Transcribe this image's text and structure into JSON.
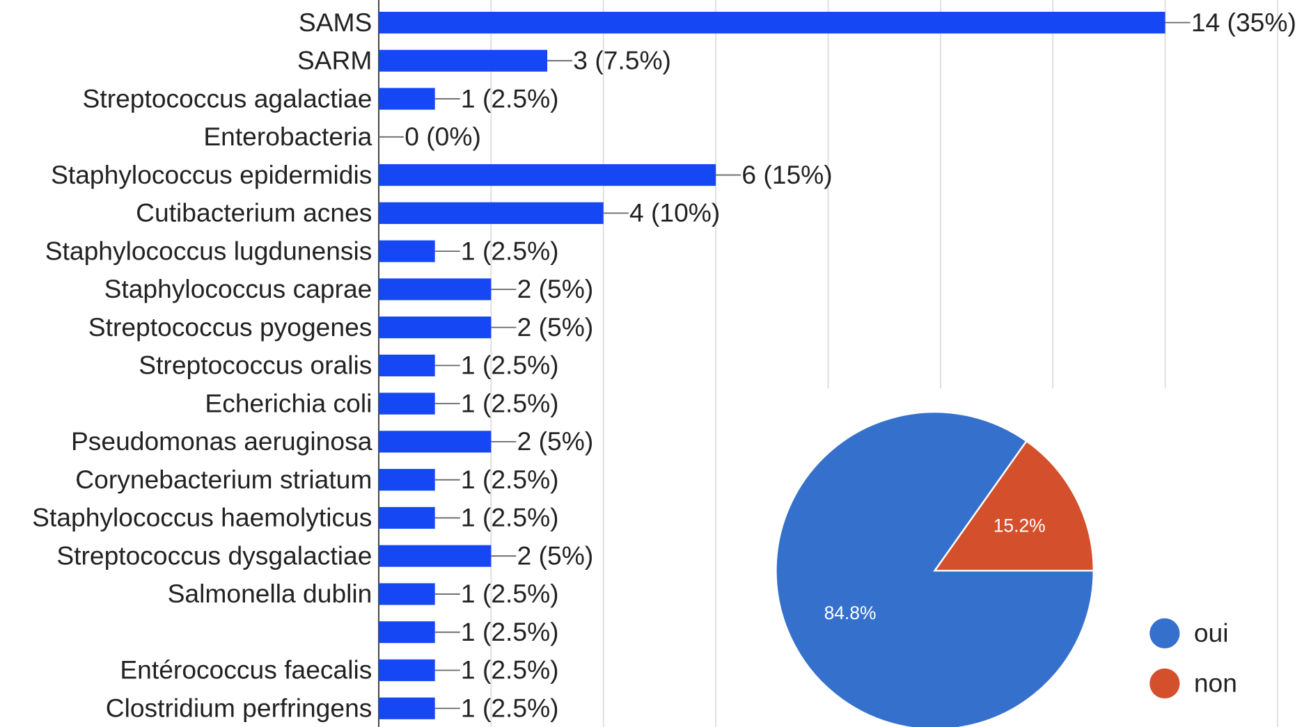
{
  "chart_data": [
    {
      "type": "bar",
      "orientation": "horizontal",
      "categories": [
        "SAMS",
        "SARM",
        "Streptococcus agalactiae",
        "Enterobacteria",
        "Staphylococcus epidermidis",
        "Cutibacterium acnes",
        "Staphylococcus lugdunensis",
        "Staphylococcus caprae",
        "Streptococcus pyogenes",
        "Streptococcus oralis",
        "Echerichia coli",
        "Pseudomonas aeruginosa",
        "Corynebacterium striatum",
        "Staphylococcus haemolyticus",
        "Streptococcus dysgalactiae",
        "Salmonella dublin",
        null,
        "Entérococcus faecalis",
        "Clostridium perfringens"
      ],
      "values": [
        14,
        3,
        1,
        0,
        6,
        4,
        1,
        2,
        2,
        1,
        1,
        2,
        1,
        1,
        2,
        1,
        1,
        1,
        1
      ],
      "value_labels": [
        "14 (35%)",
        "3 (7.5%)",
        "1 (2.5%)",
        "0 (0%)",
        "6 (15%)",
        "4 (10%)",
        "1 (2.5%)",
        "2 (5%)",
        "2 (5%)",
        "1 (2.5%)",
        "1 (2.5%)",
        "2 (5%)",
        "1 (2.5%)",
        "1 (2.5%)",
        "2 (5%)",
        "1 (2.5%)",
        "1 (2.5%)",
        "1 (2.5%)",
        "1 (2.5%)"
      ],
      "color": "#1547f5",
      "xlim": [
        0,
        16
      ],
      "xticks": [
        0,
        2,
        4,
        6,
        8,
        10,
        12,
        14,
        16
      ],
      "grid": true
    },
    {
      "type": "pie",
      "categories": [
        "oui",
        "non"
      ],
      "values": [
        84.8,
        15.2
      ],
      "value_labels": [
        "84.8%",
        "15.2%"
      ],
      "colors": [
        "#3570cc",
        "#d4502c"
      ],
      "legend": "right"
    }
  ]
}
